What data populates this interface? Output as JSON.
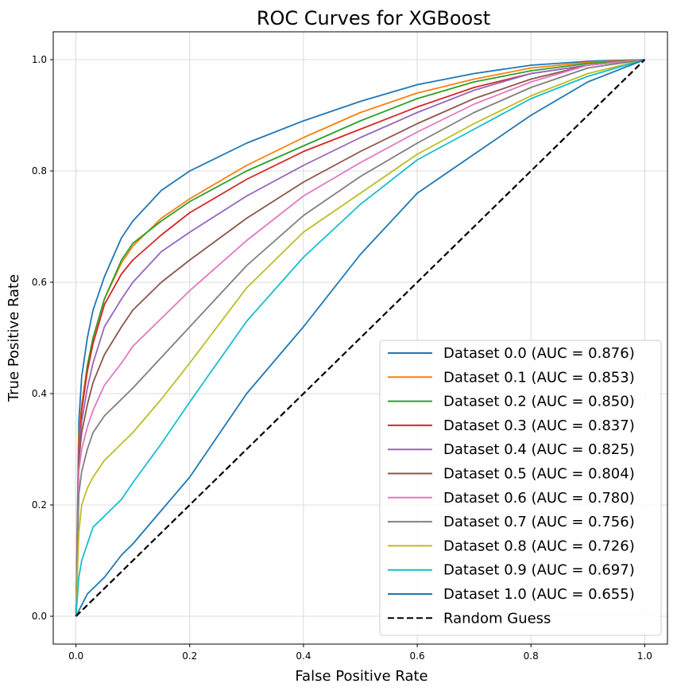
{
  "chart_data": {
    "type": "line",
    "title": "ROC Curves for XGBoost",
    "xlabel": "False Positive Rate",
    "ylabel": "True Positive Rate",
    "xlim": [
      -0.04,
      1.04
    ],
    "ylim": [
      -0.05,
      1.05
    ],
    "xticks": [
      "0.0",
      "0.2",
      "0.4",
      "0.6",
      "0.8",
      "1.0"
    ],
    "yticks": [
      "0.0",
      "0.2",
      "0.4",
      "0.6",
      "0.8",
      "1.0"
    ],
    "grid": true,
    "legend_position": "lower-right",
    "series": [
      {
        "name": "Dataset 0.0 (AUC = 0.876)",
        "color": "#1f77b4",
        "x": [
          0,
          0.005,
          0.01,
          0.02,
          0.03,
          0.05,
          0.08,
          0.1,
          0.15,
          0.2,
          0.3,
          0.4,
          0.5,
          0.6,
          0.7,
          0.8,
          0.9,
          1.0
        ],
        "y": [
          0,
          0.35,
          0.43,
          0.5,
          0.55,
          0.61,
          0.68,
          0.71,
          0.765,
          0.8,
          0.85,
          0.89,
          0.925,
          0.955,
          0.975,
          0.99,
          0.997,
          1.0
        ]
      },
      {
        "name": "Dataset 0.1 (AUC = 0.853)",
        "color": "#ff7f0e",
        "x": [
          0,
          0.005,
          0.01,
          0.02,
          0.03,
          0.05,
          0.08,
          0.1,
          0.15,
          0.2,
          0.3,
          0.4,
          0.5,
          0.6,
          0.7,
          0.8,
          0.9,
          1.0
        ],
        "y": [
          0,
          0.32,
          0.38,
          0.45,
          0.5,
          0.57,
          0.635,
          0.665,
          0.715,
          0.75,
          0.81,
          0.86,
          0.905,
          0.94,
          0.965,
          0.985,
          0.995,
          1.0
        ]
      },
      {
        "name": "Dataset 0.2 (AUC = 0.850)",
        "color": "#2ca02c",
        "x": [
          0,
          0.005,
          0.01,
          0.02,
          0.03,
          0.05,
          0.08,
          0.1,
          0.15,
          0.2,
          0.3,
          0.4,
          0.5,
          0.6,
          0.7,
          0.8,
          0.9,
          1.0
        ],
        "y": [
          0,
          0.3,
          0.37,
          0.45,
          0.5,
          0.57,
          0.64,
          0.67,
          0.71,
          0.745,
          0.8,
          0.845,
          0.89,
          0.93,
          0.96,
          0.98,
          0.993,
          1.0
        ]
      },
      {
        "name": "Dataset 0.3 (AUC = 0.837)",
        "color": "#d62728",
        "x": [
          0,
          0.005,
          0.01,
          0.02,
          0.03,
          0.05,
          0.08,
          0.1,
          0.15,
          0.2,
          0.3,
          0.4,
          0.5,
          0.6,
          0.7,
          0.8,
          0.9,
          1.0
        ],
        "y": [
          0,
          0.3,
          0.37,
          0.44,
          0.49,
          0.56,
          0.615,
          0.64,
          0.685,
          0.725,
          0.785,
          0.835,
          0.875,
          0.915,
          0.95,
          0.975,
          0.99,
          1.0
        ]
      },
      {
        "name": "Dataset 0.4 (AUC = 0.825)",
        "color": "#9467bd",
        "x": [
          0,
          0.005,
          0.01,
          0.02,
          0.03,
          0.05,
          0.08,
          0.1,
          0.15,
          0.2,
          0.3,
          0.4,
          0.5,
          0.6,
          0.7,
          0.8,
          0.9,
          1.0
        ],
        "y": [
          0,
          0.29,
          0.35,
          0.41,
          0.455,
          0.52,
          0.57,
          0.6,
          0.655,
          0.69,
          0.755,
          0.81,
          0.86,
          0.905,
          0.945,
          0.975,
          0.99,
          1.0
        ]
      },
      {
        "name": "Dataset 0.5 (AUC = 0.804)",
        "color": "#8c564b",
        "x": [
          0,
          0.005,
          0.01,
          0.02,
          0.03,
          0.05,
          0.08,
          0.1,
          0.15,
          0.2,
          0.3,
          0.4,
          0.5,
          0.6,
          0.7,
          0.8,
          0.9,
          1.0
        ],
        "y": [
          0,
          0.28,
          0.33,
          0.38,
          0.42,
          0.47,
          0.52,
          0.55,
          0.6,
          0.64,
          0.715,
          0.78,
          0.835,
          0.885,
          0.93,
          0.965,
          0.99,
          1.0
        ]
      },
      {
        "name": "Dataset 0.6 (AUC = 0.780)",
        "color": "#e377c2",
        "x": [
          0,
          0.005,
          0.01,
          0.02,
          0.03,
          0.05,
          0.08,
          0.1,
          0.15,
          0.2,
          0.3,
          0.4,
          0.5,
          0.6,
          0.7,
          0.8,
          0.9,
          1.0
        ],
        "y": [
          0,
          0.26,
          0.3,
          0.34,
          0.37,
          0.415,
          0.455,
          0.485,
          0.535,
          0.585,
          0.675,
          0.755,
          0.815,
          0.87,
          0.92,
          0.96,
          0.99,
          1.0
        ]
      },
      {
        "name": "Dataset 0.7 (AUC = 0.756)",
        "color": "#7f7f7f",
        "x": [
          0,
          0.005,
          0.01,
          0.02,
          0.03,
          0.05,
          0.08,
          0.1,
          0.15,
          0.2,
          0.3,
          0.4,
          0.5,
          0.6,
          0.7,
          0.8,
          0.9,
          1.0
        ],
        "y": [
          0,
          0.22,
          0.26,
          0.3,
          0.33,
          0.36,
          0.39,
          0.41,
          0.465,
          0.52,
          0.63,
          0.72,
          0.79,
          0.85,
          0.905,
          0.95,
          0.985,
          1.0
        ]
      },
      {
        "name": "Dataset 0.8 (AUC = 0.726)",
        "color": "#bcbd22",
        "x": [
          0,
          0.005,
          0.01,
          0.02,
          0.03,
          0.05,
          0.08,
          0.1,
          0.15,
          0.2,
          0.3,
          0.4,
          0.5,
          0.6,
          0.7,
          0.8,
          0.9,
          1.0
        ],
        "y": [
          0,
          0.15,
          0.2,
          0.23,
          0.25,
          0.28,
          0.31,
          0.33,
          0.39,
          0.455,
          0.59,
          0.69,
          0.76,
          0.83,
          0.885,
          0.935,
          0.975,
          1.0
        ]
      },
      {
        "name": "Dataset 0.9 (AUC = 0.697)",
        "color": "#17becf",
        "x": [
          0,
          0.005,
          0.01,
          0.02,
          0.03,
          0.05,
          0.08,
          0.1,
          0.15,
          0.2,
          0.3,
          0.4,
          0.5,
          0.6,
          0.7,
          0.8,
          0.9,
          1.0
        ],
        "y": [
          0,
          0.07,
          0.1,
          0.13,
          0.16,
          0.18,
          0.21,
          0.24,
          0.31,
          0.385,
          0.53,
          0.645,
          0.74,
          0.82,
          0.875,
          0.93,
          0.97,
          1.0
        ]
      },
      {
        "name": "Dataset 1.0 (AUC = 0.655)",
        "color": "#1f77b4",
        "x": [
          0,
          0.005,
          0.01,
          0.02,
          0.03,
          0.05,
          0.08,
          0.1,
          0.15,
          0.2,
          0.3,
          0.4,
          0.5,
          0.6,
          0.7,
          0.8,
          0.9,
          1.0
        ],
        "y": [
          0,
          0.01,
          0.02,
          0.04,
          0.05,
          0.07,
          0.11,
          0.13,
          0.19,
          0.25,
          0.4,
          0.52,
          0.65,
          0.76,
          0.83,
          0.9,
          0.96,
          1.0
        ]
      },
      {
        "name": "Random Guess",
        "color": "#000000",
        "dashed": true,
        "x": [
          0,
          1
        ],
        "y": [
          0,
          1
        ]
      }
    ]
  }
}
